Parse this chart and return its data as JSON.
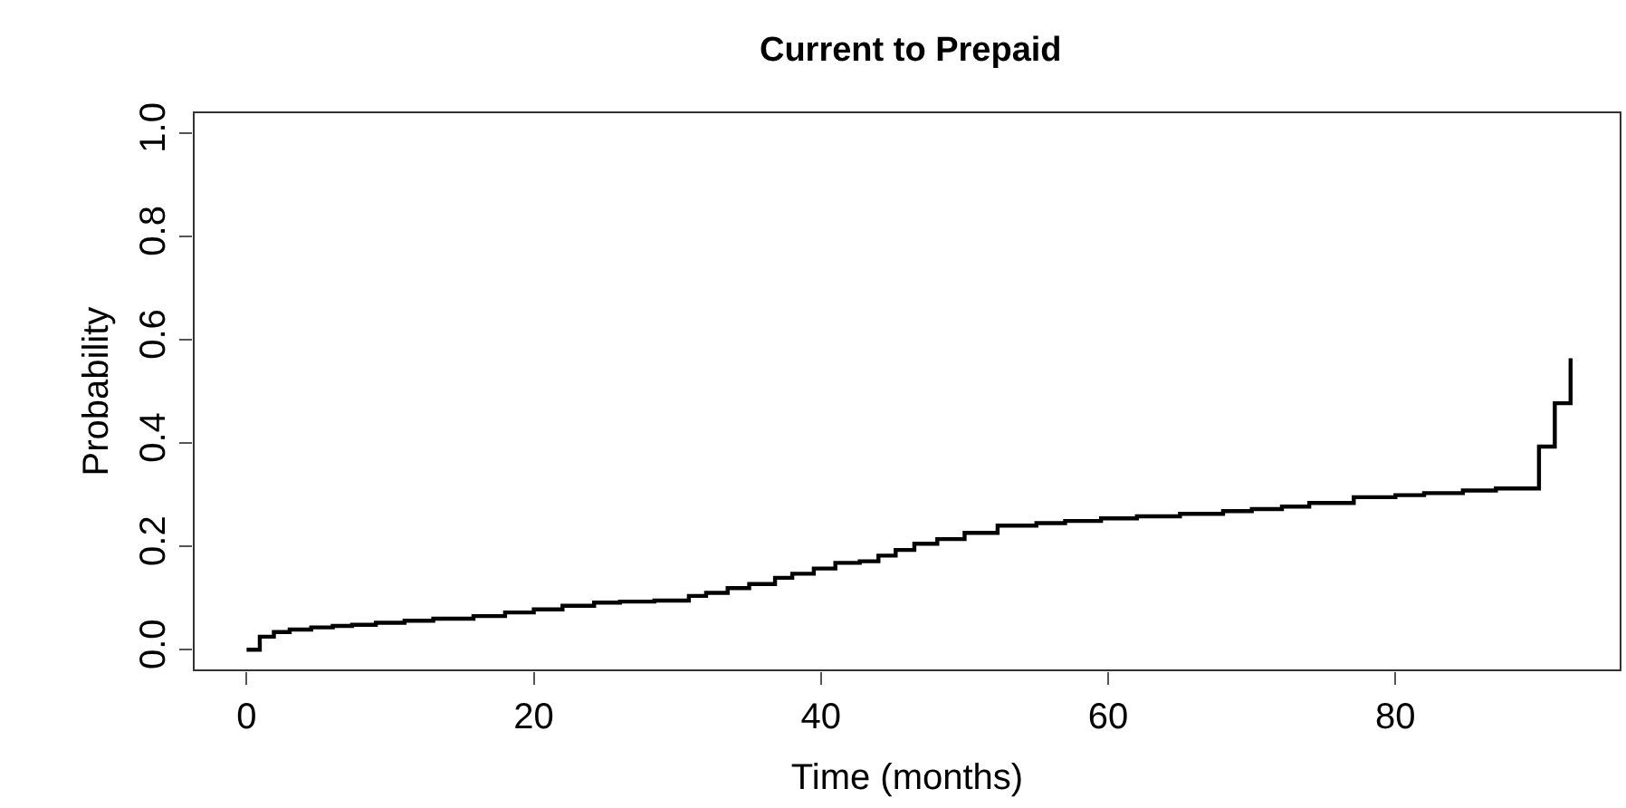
{
  "chart_data": {
    "type": "step",
    "title": "Current to Prepaid",
    "xlabel": "Time (months)",
    "ylabel": "Probability",
    "x": [
      0,
      0.92,
      1.9,
      3,
      4.5,
      6,
      7.35,
      9,
      11,
      13,
      15.8,
      18,
      20,
      22,
      24.2,
      26,
      28.4,
      30.8,
      32,
      33.5,
      35,
      36.8,
      38,
      39.5,
      41,
      42.7,
      44,
      45.2,
      46.5,
      48.1,
      50,
      52.3,
      55,
      57,
      59.5,
      62,
      65,
      68,
      70,
      72.1,
      74,
      77.1,
      80,
      82,
      84.7,
      87,
      90.0,
      91.1,
      92.2
    ],
    "series": [
      {
        "color": "#000000",
        "values": [
          0,
          0.025,
          0.034,
          0.039,
          0.043,
          0.046,
          0.048,
          0.052,
          0.056,
          0.06,
          0.065,
          0.072,
          0.078,
          0.085,
          0.091,
          0.093,
          0.095,
          0.104,
          0.11,
          0.119,
          0.127,
          0.139,
          0.147,
          0.157,
          0.168,
          0.171,
          0.182,
          0.193,
          0.205,
          0.214,
          0.226,
          0.24,
          0.245,
          0.249,
          0.254,
          0.258,
          0.263,
          0.268,
          0.272,
          0.277,
          0.284,
          0.295,
          0.299,
          0.303,
          0.308,
          0.312,
          0.393,
          0.477,
          0.564
        ]
      }
    ],
    "xlim": [
      -3.68,
      95.68
    ],
    "xticks": [
      0,
      20,
      40,
      60,
      80
    ],
    "ylim": [
      -0.04,
      1.04
    ],
    "yticks": [
      {
        "value": 0,
        "label": "0.0"
      },
      {
        "value": 0.2,
        "label": "0.2"
      },
      {
        "value": 0.4,
        "label": "0.4"
      },
      {
        "value": 0.6,
        "label": "0.6"
      },
      {
        "value": 0.8,
        "label": "0.8"
      },
      {
        "value": 1,
        "label": "1.0"
      }
    ],
    "marker": "none",
    "line_style": "solid"
  }
}
